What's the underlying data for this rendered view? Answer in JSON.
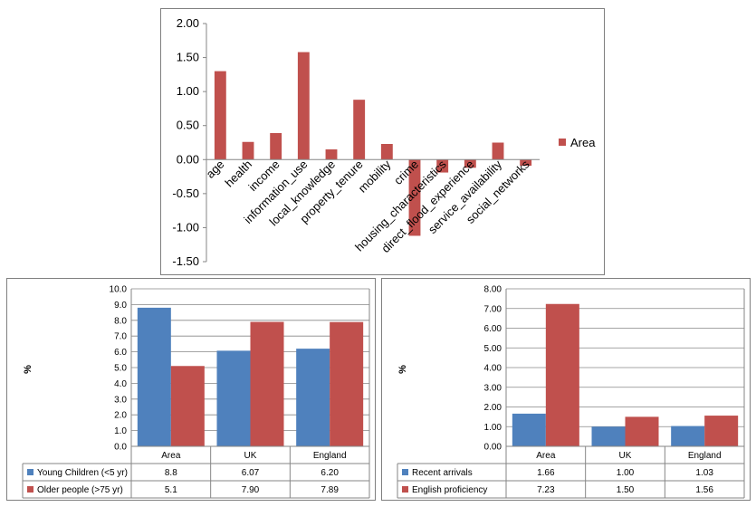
{
  "chart_data": [
    {
      "type": "bar",
      "categories": [
        "age",
        "health",
        "income",
        "information_use",
        "local_knowledge",
        "property_tenure",
        "mobility",
        "crime",
        "housing_characteristics",
        "direct_flood_experience",
        "service_availability",
        "social_networks"
      ],
      "series": [
        {
          "name": "Area",
          "color": "#c0504d",
          "values": [
            1.3,
            0.26,
            0.39,
            1.58,
            0.15,
            0.88,
            0.23,
            -1.12,
            -0.19,
            -0.12,
            0.25,
            -0.09
          ]
        }
      ],
      "ylim": [
        -1.5,
        2.0
      ],
      "yticks": [
        "2.00",
        "1.50",
        "1.00",
        "0.50",
        "0.00",
        "-0.50",
        "-1.00",
        "-1.50"
      ],
      "legend": "right",
      "grid": false
    },
    {
      "type": "bar",
      "categories": [
        "Area",
        "UK",
        "England"
      ],
      "ylabel": "%",
      "ylim": [
        0,
        10
      ],
      "yticks": [
        "10.0",
        "9.0",
        "8.0",
        "7.0",
        "6.0",
        "5.0",
        "4.0",
        "3.0",
        "2.0",
        "1.0",
        "0.0"
      ],
      "grid": true,
      "series": [
        {
          "name": "Young Children (<5 yr)",
          "color": "#4f81bd",
          "values": [
            8.8,
            6.07,
            6.2
          ],
          "labels": [
            "8.8",
            "6.07",
            "6.20"
          ]
        },
        {
          "name": "Older people (>75 yr)",
          "color": "#c0504d",
          "values": [
            5.1,
            7.9,
            7.89
          ],
          "labels": [
            "5.1",
            "7.90",
            "7.89"
          ]
        }
      ],
      "legend": "data-table"
    },
    {
      "type": "bar",
      "categories": [
        "Area",
        "UK",
        "England"
      ],
      "ylabel": "%",
      "ylim": [
        0,
        8
      ],
      "yticks": [
        "8.00",
        "7.00",
        "6.00",
        "5.00",
        "4.00",
        "3.00",
        "2.00",
        "1.00",
        "0.00"
      ],
      "grid": true,
      "series": [
        {
          "name": "Recent arrivals",
          "color": "#4f81bd",
          "values": [
            1.66,
            1.0,
            1.03
          ],
          "labels": [
            "1.66",
            "1.00",
            "1.03"
          ]
        },
        {
          "name": "English proficiency",
          "color": "#c0504d",
          "values": [
            7.23,
            1.5,
            1.56
          ],
          "labels": [
            "7.23",
            "1.50",
            "1.56"
          ]
        }
      ],
      "legend": "data-table"
    }
  ]
}
